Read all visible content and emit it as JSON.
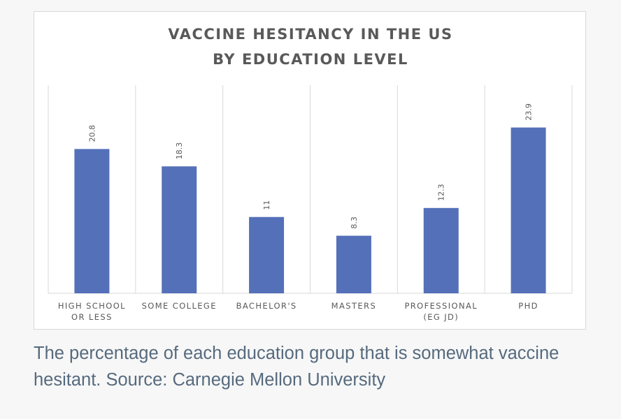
{
  "chart_data": {
    "type": "bar",
    "title": [
      "VACCINE HESITANCY IN THE US",
      "BY EDUCATION LEVEL"
    ],
    "categories": [
      [
        "HIGH SCHOOL",
        "OR LESS"
      ],
      [
        "SOME COLLEGE"
      ],
      [
        "BACHELOR'S"
      ],
      [
        "MASTERS"
      ],
      [
        "PROFESSIONAL",
        "(EG JD)"
      ],
      [
        "PHD"
      ]
    ],
    "values": [
      20.8,
      18.3,
      11,
      8.3,
      12.3,
      23.9
    ],
    "value_labels": [
      "20.8",
      "18.3",
      "11",
      "8.3",
      "12.3",
      "23.9"
    ],
    "ylim": [
      0,
      30
    ],
    "xlabel": "",
    "ylabel": "",
    "grid": "vertical category separators",
    "bar_color": "#5470b8"
  },
  "caption": "The percentage of each education group that is somewhat vaccine hesitant. Source: Carnegie Mellon University",
  "colors": {
    "page_background": "#f7f7f7",
    "caption_text": "#566a7e",
    "chart_text": "#595959",
    "grid": "#d9d9d9"
  }
}
